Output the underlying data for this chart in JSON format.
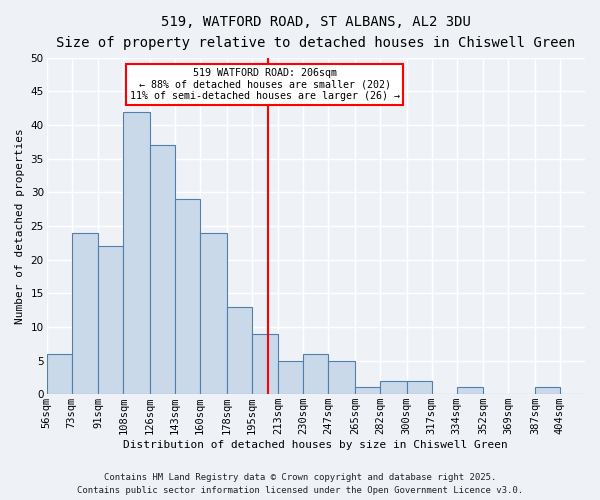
{
  "title": "519, WATFORD ROAD, ST ALBANS, AL2 3DU",
  "subtitle": "Size of property relative to detached houses in Chiswell Green",
  "xlabel": "Distribution of detached houses by size in Chiswell Green",
  "ylabel": "Number of detached properties",
  "bin_labels": [
    "56sqm",
    "73sqm",
    "91sqm",
    "108sqm",
    "126sqm",
    "143sqm",
    "160sqm",
    "178sqm",
    "195sqm",
    "213sqm",
    "230sqm",
    "247sqm",
    "265sqm",
    "282sqm",
    "300sqm",
    "317sqm",
    "334sqm",
    "352sqm",
    "369sqm",
    "387sqm",
    "404sqm"
  ],
  "bin_edges": [
    56,
    73,
    91,
    108,
    126,
    143,
    160,
    178,
    195,
    213,
    230,
    247,
    265,
    282,
    300,
    317,
    334,
    352,
    369,
    387,
    404,
    421
  ],
  "counts": [
    6,
    24,
    22,
    42,
    37,
    29,
    24,
    13,
    9,
    5,
    6,
    5,
    1,
    2,
    2,
    0,
    1,
    0,
    0,
    1,
    0
  ],
  "bar_color": "#c9d9ea",
  "bar_edge_color": "#4f7faa",
  "ref_line_x": 206,
  "ref_line_color": "red",
  "annotation_title": "519 WATFORD ROAD: 206sqm",
  "annotation_line1": "← 88% of detached houses are smaller (202)",
  "annotation_line2": "11% of semi-detached houses are larger (26) →",
  "annotation_box_color": "red",
  "annotation_box_facecolor": "white",
  "ylim": [
    0,
    50
  ],
  "yticks": [
    0,
    5,
    10,
    15,
    20,
    25,
    30,
    35,
    40,
    45,
    50
  ],
  "background_color": "#eef2f7",
  "grid_color": "#ffffff",
  "footer1": "Contains HM Land Registry data © Crown copyright and database right 2025.",
  "footer2": "Contains public sector information licensed under the Open Government Licence v3.0.",
  "title_fontsize": 10,
  "subtitle_fontsize": 9,
  "xlabel_fontsize": 8,
  "ylabel_fontsize": 8,
  "tick_fontsize": 7.5,
  "footer_fontsize": 6.5
}
